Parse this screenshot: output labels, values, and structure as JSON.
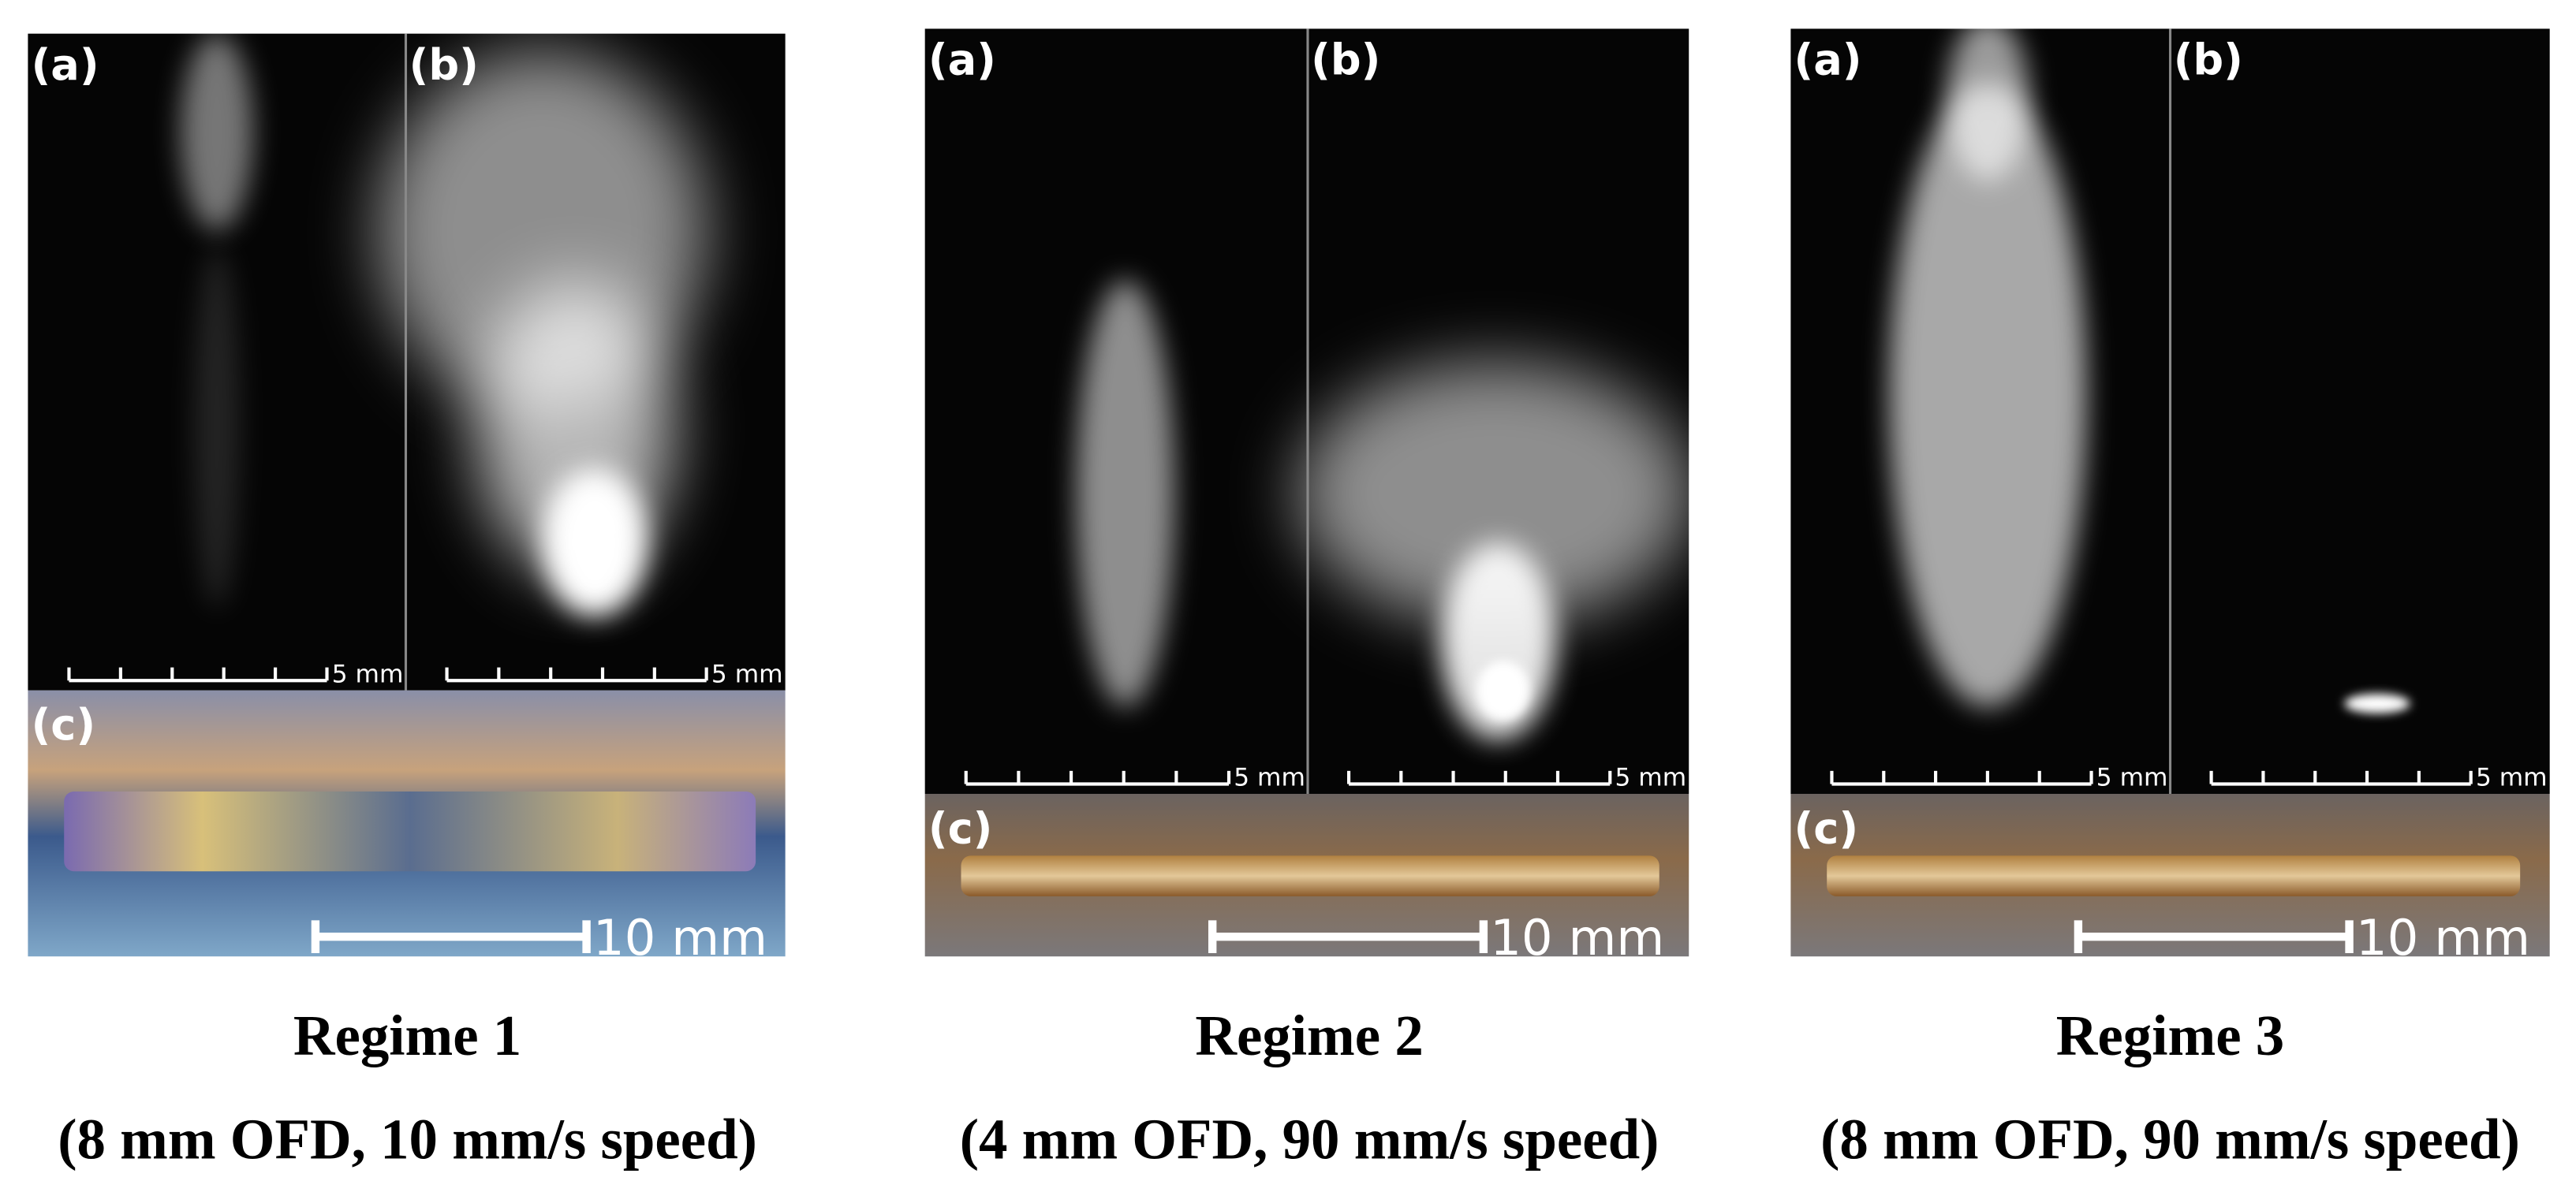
{
  "panels": [
    {
      "label_a": "(a)",
      "label_b": "(b)",
      "label_c": "(c)",
      "scale_a": "5 mm",
      "scale_b": "5 mm",
      "scale_c": "10 mm",
      "title": "Regime 1",
      "subtitle": "(8 mm OFD, 10 mm/s speed)"
    },
    {
      "label_a": "(a)",
      "label_b": "(b)",
      "label_c": "(c)",
      "scale_a": "5 mm",
      "scale_b": "5 mm",
      "scale_c": "10 mm",
      "title": "Regime 2",
      "subtitle": "(4 mm OFD, 90 mm/s speed)"
    },
    {
      "label_a": "(a)",
      "label_b": "(b)",
      "label_c": "(c)",
      "scale_a": "5 mm",
      "scale_b": "5 mm",
      "scale_c": "10 mm",
      "title": "Regime 3",
      "subtitle": "(8 mm OFD, 90 mm/s speed)"
    }
  ]
}
